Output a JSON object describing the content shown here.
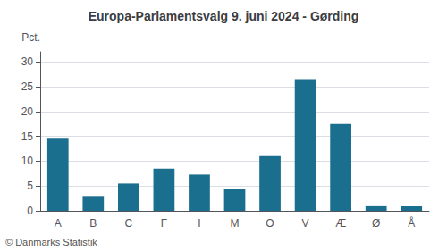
{
  "chart_data": {
    "type": "bar",
    "title": "Europa-Parlamentsvalg 9. juni 2024 - Gørding",
    "categories": [
      "A",
      "B",
      "C",
      "F",
      "I",
      "M",
      "O",
      "V",
      "Æ",
      "Ø",
      "Å"
    ],
    "values": [
      14.7,
      3.0,
      5.5,
      8.5,
      7.3,
      4.5,
      11.0,
      26.5,
      17.5,
      1.1,
      0.9
    ],
    "color": "#1a6e8e",
    "ylabel": "Pct.",
    "footer": "© Danmarks Statistik",
    "ylim": [
      0,
      32
    ],
    "yticks": [
      0,
      5,
      10,
      15,
      20,
      25,
      30
    ],
    "grid": true
  }
}
